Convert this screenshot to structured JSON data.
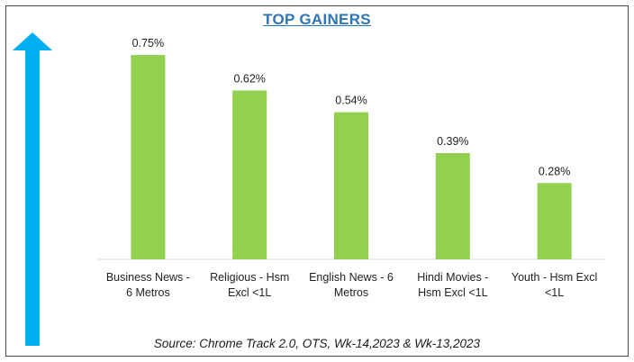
{
  "chart_data": {
    "type": "bar",
    "title": "TOP GAINERS",
    "categories": [
      [
        "Business News -",
        "6 Metros"
      ],
      [
        "Religious - Hsm",
        "Excl <1L"
      ],
      [
        "English News - 6",
        "Metros"
      ],
      [
        "Hindi Movies -",
        "Hsm Excl <1L"
      ],
      [
        "Youth - Hsm Excl",
        "<1L"
      ]
    ],
    "values": [
      0.75,
      0.62,
      0.54,
      0.39,
      0.28
    ],
    "value_labels": [
      "0.75%",
      "0.62%",
      "0.54%",
      "0.39%",
      "0.28%"
    ],
    "ylim": [
      0,
      0.8
    ],
    "bar_color": "#92d050",
    "source": "Source: Chrome Track 2.0, OTS, Wk-14,2023 & Wk-13,2023"
  },
  "colors": {
    "title": "#2e75b6",
    "arrow": "#00b0f0",
    "bar": "#92d050"
  },
  "icons": {
    "arrow": "up-arrow-icon"
  }
}
